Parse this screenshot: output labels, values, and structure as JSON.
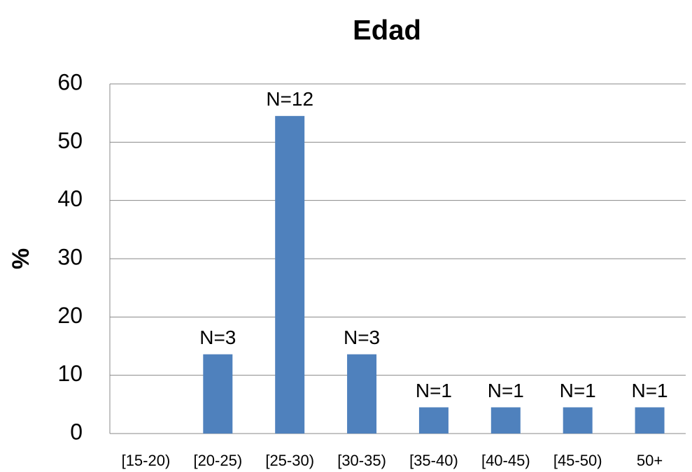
{
  "chart_data": {
    "type": "bar",
    "title": "Edad",
    "y_label": "%",
    "categories": [
      "[15-20)",
      "[20-25)",
      "[25-30)",
      "[30-35)",
      "[35-40)",
      "[40-45)",
      "[45-50)",
      "50+"
    ],
    "values": [
      0,
      13.6,
      54.5,
      13.6,
      4.5,
      4.5,
      4.5,
      4.5
    ],
    "data_labels": [
      null,
      "N=3",
      "N=12",
      "N=3",
      "N=1",
      "N=1",
      "N=1",
      "N=1"
    ],
    "color": "#4f81bd",
    "ylim": [
      0,
      60
    ],
    "yticks": [
      0,
      10,
      20,
      30,
      40,
      50,
      60
    ],
    "grid": true
  }
}
